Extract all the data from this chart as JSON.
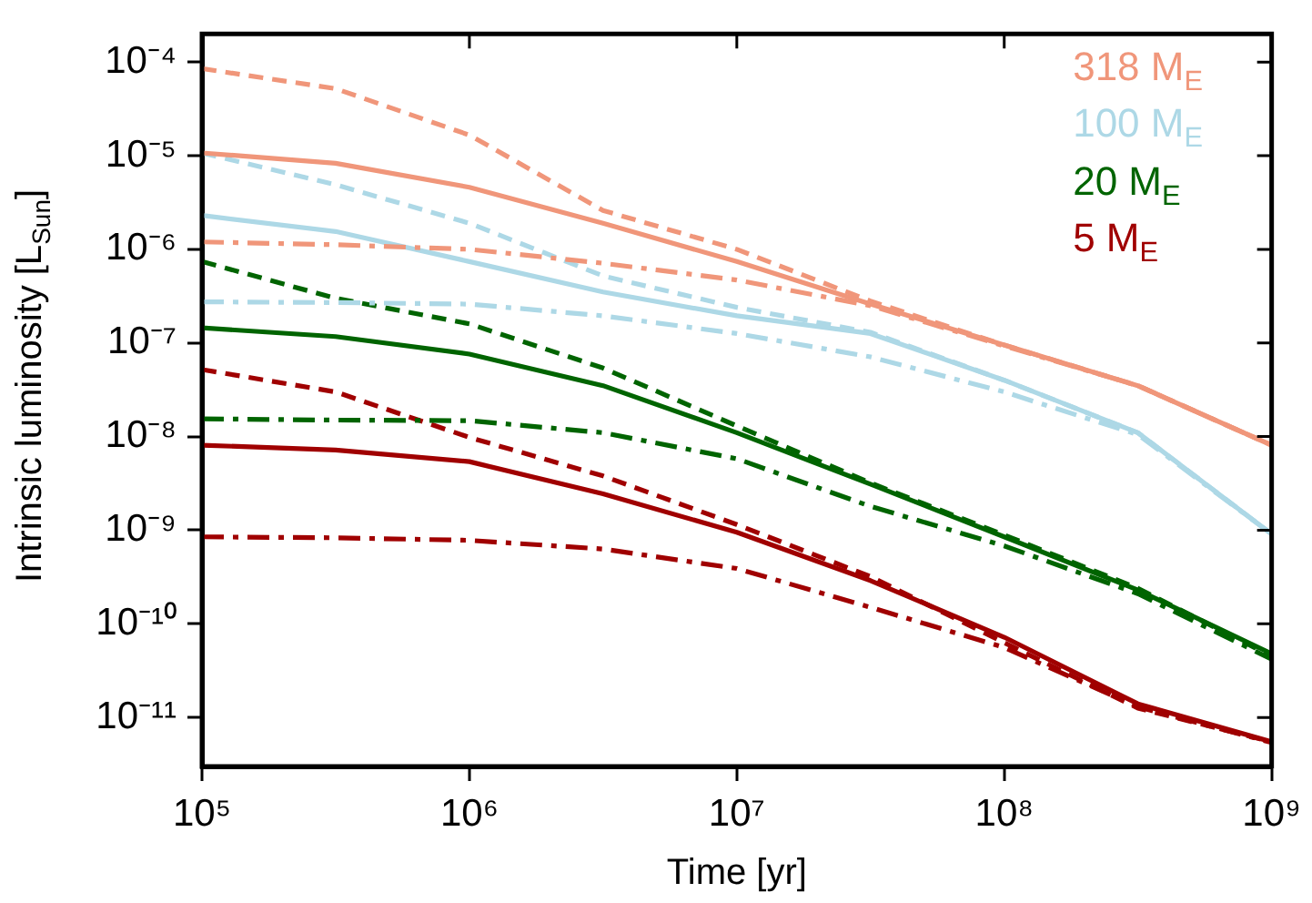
{
  "chart_data": {
    "type": "line",
    "xlabel": "Time [yr]",
    "ylabel": "Intrinsic luminosity [L$_{Sun}$]",
    "log": "xy",
    "grid": false,
    "legend": "top right",
    "marker": "none",
    "x": [
      100000.0,
      316000.0,
      1000000.0,
      3160000.0,
      10000000.0,
      31600000.0,
      100000000.0,
      316000000.0,
      1000000000.0
    ],
    "xlim": [
      100000.0,
      1000000000.0
    ],
    "xticks": [
      {
        "value": 100000.0,
        "label": "10⁵"
      },
      {
        "value": 1000000.0,
        "label": "10⁶"
      },
      {
        "value": 10000000.0,
        "label": "10⁷"
      },
      {
        "value": 100000000.0,
        "label": "10⁸"
      },
      {
        "value": 1000000000.0,
        "label": "10⁹"
      }
    ],
    "ylim": [
      3e-12,
      0.0002
    ],
    "yticks": [
      {
        "value": 1e-11,
        "label": "10⁻¹¹"
      },
      {
        "value": 1e-10,
        "label": "10⁻¹⁰"
      },
      {
        "value": 1e-09,
        "label": "10⁻⁹"
      },
      {
        "value": 1e-08,
        "label": "10⁻⁸"
      },
      {
        "value": 1e-07,
        "label": "10⁻⁷"
      },
      {
        "value": 1e-06,
        "label": "10⁻⁶"
      },
      {
        "value": 1e-05,
        "label": "10⁻⁵"
      },
      {
        "value": 0.0001,
        "label": "10⁻⁴"
      }
    ],
    "series": [
      {
        "name": "318 M$_{E}$",
        "color": "#f0967a",
        "line_style": "solid",
        "values": [
          1.07e-05,
          8.3e-06,
          4.6e-06,
          1.9e-06,
          7.4e-07,
          2.6e-07,
          9.5e-08,
          3.5e-08,
          8.1e-09
        ]
      },
      {
        "color": "#f0967a",
        "line_style": "dashed",
        "values": [
          8.5e-05,
          5.2e-05,
          1.66e-05,
          2.6e-06,
          1e-06,
          2.8e-07,
          9.5e-08,
          3.5e-08,
          8.1e-09
        ]
      },
      {
        "color": "#f0967a",
        "line_style": "dashdot",
        "values": [
          1.2e-06,
          1.12e-06,
          1e-06,
          7.1e-07,
          4.7e-07,
          2.5e-07,
          9.3e-08,
          3.5e-08,
          8.1e-09
        ]
      },
      {
        "name": "100 M$_{E}$",
        "color": "#add8e6",
        "line_style": "solid",
        "values": [
          2.3e-06,
          1.55e-06,
          7.4e-07,
          3.5e-07,
          1.95e-07,
          1.26e-07,
          4e-08,
          1.1e-08,
          9.1e-10
        ]
      },
      {
        "color": "#add8e6",
        "line_style": "dashed",
        "values": [
          1.07e-05,
          4.9e-06,
          1.9e-06,
          5.2e-07,
          2.4e-07,
          1.3e-07,
          4e-08,
          1.1e-08,
          9.1e-10
        ]
      },
      {
        "color": "#add8e6",
        "line_style": "dashdot",
        "values": [
          2.75e-07,
          2.7e-07,
          2.6e-07,
          1.95e-07,
          1.26e-07,
          7.1e-08,
          3e-08,
          1.05e-08,
          9.1e-10
        ]
      },
      {
        "name": "20 M$_{E}$",
        "color": "#006400",
        "line_style": "solid",
        "values": [
          1.45e-07,
          1.17e-07,
          7.6e-08,
          3.5e-08,
          1.1e-08,
          3.1e-09,
          8.5e-10,
          2.3e-10,
          4.8e-11
        ]
      },
      {
        "color": "#006400",
        "line_style": "dashed",
        "values": [
          7.4e-07,
          3e-07,
          1.6e-07,
          5.4e-08,
          1.3e-08,
          3.2e-09,
          8.9e-10,
          2.4e-10,
          4.5e-11
        ]
      },
      {
        "color": "#006400",
        "line_style": "dashdot",
        "values": [
          1.55e-08,
          1.5e-08,
          1.48e-08,
          1.1e-08,
          5.8e-09,
          1.8e-09,
          6.8e-10,
          2.1e-10,
          4.2e-11
        ]
      },
      {
        "name": "5 M$_{E}$",
        "color": "#a00000",
        "line_style": "solid",
        "values": [
          8.1e-09,
          7.2e-09,
          5.4e-09,
          2.45e-09,
          9.5e-10,
          2.9e-10,
          7.2e-11,
          1.4e-11,
          5.5e-12
        ]
      },
      {
        "color": "#a00000",
        "line_style": "dashed",
        "values": [
          5.2e-08,
          3e-08,
          9.8e-09,
          3.8e-09,
          1.15e-09,
          3.2e-10,
          6.3e-11,
          1.26e-11,
          5.5e-12
        ]
      },
      {
        "color": "#a00000",
        "line_style": "dashdot",
        "values": [
          8.5e-10,
          8.3e-10,
          7.8e-10,
          6.3e-10,
          3.9e-10,
          1.5e-10,
          5.6e-11,
          1.3e-11,
          5.4e-12
        ]
      }
    ]
  }
}
